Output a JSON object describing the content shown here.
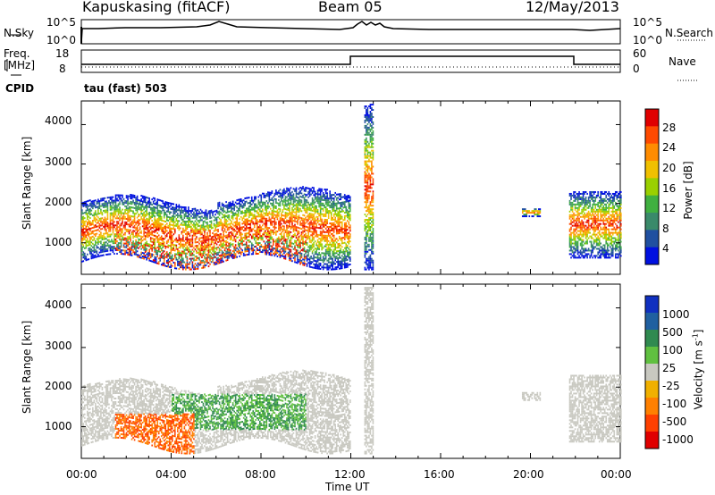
{
  "header": {
    "station": "Kapuskasing (fitACF)",
    "beam": "Beam 05",
    "date": "12/May/2013"
  },
  "top_panels": {
    "nsky_label": "N.Sky",
    "nsky_ticks": [
      "10^5",
      "10^0"
    ],
    "nsearch_label": "N.Search",
    "nsearch_ticks": [
      "10^5",
      "10^0"
    ],
    "freq_label": "Freq.",
    "freq_unit": "[MHz]",
    "freq_ticks": [
      "18",
      "8"
    ],
    "nave_label": "Nave",
    "nave_ticks": [
      "60",
      "0"
    ],
    "cpid_label": "CPID",
    "cpid_value": "tau (fast) 503"
  },
  "chart_data": [
    {
      "type": "heatmap",
      "panel": "power",
      "ylabel": "Slant Range [km]",
      "xlabel": "",
      "y_ticks": [
        "4000",
        "3000",
        "2000",
        "1000"
      ],
      "y_tick_values": [
        4000,
        3000,
        2000,
        1000
      ],
      "ylim": [
        200,
        4600
      ],
      "xlim_hours": [
        0,
        24
      ],
      "colorbar_label": "Power [dB]",
      "colorbar_ticks": [
        "28",
        "24",
        "20",
        "16",
        "12",
        "8",
        "4"
      ],
      "colorbar_colors": [
        "#e00000",
        "#ff4a00",
        "#ff8c00",
        "#f0c000",
        "#9ad000",
        "#40b040",
        "#3a8a6a",
        "#2050a0",
        "#0010e0"
      ]
    },
    {
      "type": "heatmap",
      "panel": "velocity",
      "ylabel": "Slant Range [km]",
      "xlabel": "Time UT",
      "y_ticks": [
        "4000",
        "3000",
        "2000",
        "1000"
      ],
      "y_tick_values": [
        4000,
        3000,
        2000,
        1000
      ],
      "ylim": [
        200,
        4600
      ],
      "x_ticks": [
        "00:00",
        "04:00",
        "08:00",
        "12:00",
        "16:00",
        "20:00",
        "00:00"
      ],
      "x_tick_hours": [
        0,
        4,
        8,
        12,
        16,
        20,
        24
      ],
      "xlim_hours": [
        0,
        24
      ],
      "colorbar_label": "Velocity [m s",
      "colorbar_label_sup": "-1",
      "colorbar_label_end": "]",
      "colorbar_ticks": [
        "1000",
        "500",
        "100",
        "25",
        "-25",
        "-100",
        "-500",
        "-1000"
      ],
      "colorbar_colors": [
        "#1030c0",
        "#2060a0",
        "#308a50",
        "#60c040",
        "#c8c8c0",
        "#f0b000",
        "#ff8000",
        "#ff4000",
        "#e00000"
      ]
    }
  ]
}
